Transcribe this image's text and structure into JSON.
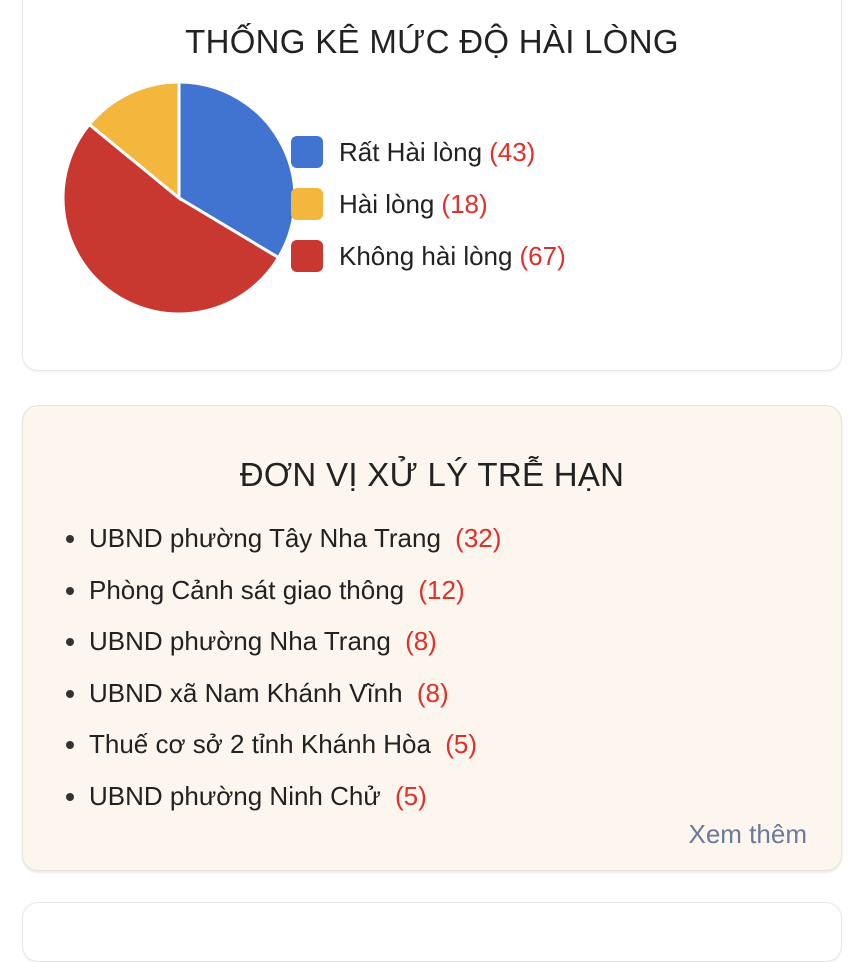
{
  "satisfaction": {
    "title": "THỐNG KÊ MỨC ĐỘ HÀI LÒNG",
    "legend": [
      {
        "label": "Rất Hài lòng",
        "count": "(43)",
        "color": "#4173d0"
      },
      {
        "label": "Hài lòng",
        "count": "(18)",
        "color": "#f4b73e"
      },
      {
        "label": "Không hài lòng",
        "count": "(67)",
        "color": "#c83830"
      }
    ]
  },
  "chart_data": {
    "type": "pie",
    "categories": [
      "Rất Hài lòng",
      "Không hài lòng",
      "Hài lòng"
    ],
    "values": [
      43,
      67,
      18
    ],
    "colors": [
      "#4173d0",
      "#c83830",
      "#f4b73e"
    ],
    "legend_placement": "right"
  },
  "overdue": {
    "title": "ĐƠN VỊ XỬ LÝ TRỄ HẠN",
    "items": [
      {
        "name": "UBND phường Tây Nha Trang",
        "count": "(32)"
      },
      {
        "name": "Phòng Cảnh sát giao thông",
        "count": "(12)"
      },
      {
        "name": "UBND phường Nha Trang",
        "count": "(8)"
      },
      {
        "name": "UBND xã Nam Khánh Vĩnh",
        "count": "(8)"
      },
      {
        "name": "Thuế cơ sở 2 tỉnh Khánh Hòa",
        "count": "(5)"
      },
      {
        "name": "UBND phường Ninh Chử",
        "count": "(5)"
      }
    ],
    "more_label": "Xem thêm"
  }
}
